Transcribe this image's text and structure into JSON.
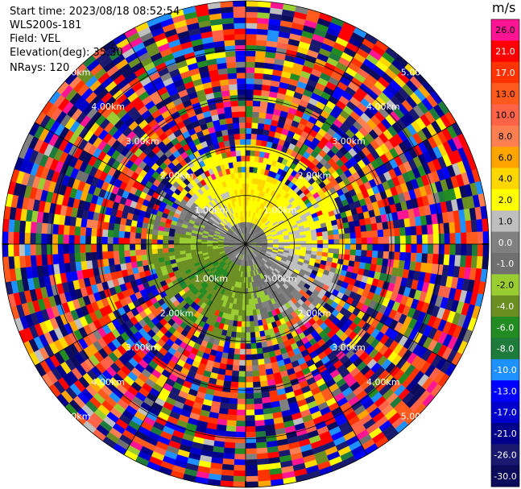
{
  "header": {
    "start_time": "Start time: 2023/08/18 08:52:54",
    "instrument": "WLS200s-181",
    "field": "Field: VEL",
    "elevation": "Elevation(deg): 35.30",
    "nrays": "NRays: 120"
  },
  "colorbar": {
    "unit": "m/s",
    "bins": [
      {
        "label": "26.0",
        "color": "#ff1493"
      },
      {
        "label": "21.0",
        "color": "#ff0000"
      },
      {
        "label": "17.0",
        "color": "#ff3300"
      },
      {
        "label": "13.0",
        "color": "#ff5a1e"
      },
      {
        "label": "10.0",
        "color": "#ff6347"
      },
      {
        "label": "8.0",
        "color": "#ff7f50"
      },
      {
        "label": "6.0",
        "color": "#ffa500"
      },
      {
        "label": "4.0",
        "color": "#ffd700"
      },
      {
        "label": "2.0",
        "color": "#ffff00"
      },
      {
        "label": "1.0",
        "color": "#bfbfbf"
      },
      {
        "label": "0.0",
        "color": "#808080"
      },
      {
        "label": "-1.0",
        "color": "#707070"
      },
      {
        "label": "-2.0",
        "color": "#9acd32"
      },
      {
        "label": "-4.0",
        "color": "#6b8e23"
      },
      {
        "label": "-6.0",
        "color": "#228b22"
      },
      {
        "label": "-8.0",
        "color": "#1e7b3c"
      },
      {
        "label": "-10.0",
        "color": "#1e90ff"
      },
      {
        "label": "-13.0",
        "color": "#0000ff"
      },
      {
        "label": "-17.0",
        "color": "#0000cd"
      },
      {
        "label": "-21.0",
        "color": "#00008b"
      },
      {
        "label": "-26.0",
        "color": "#191970"
      },
      {
        "label": "-30.0",
        "color": "#0b0b5c"
      }
    ]
  },
  "chart_data": {
    "type": "heatmap",
    "projection": "polar PPI",
    "field": "VEL",
    "units": "m/s",
    "range_rings_km": [
      1.0,
      2.0,
      3.0,
      4.0,
      5.0
    ],
    "range_ring_labels": [
      "1.00km",
      "2.00km",
      "3.00km",
      "4.00km",
      "5.00km"
    ],
    "azimuth_spokes_deg": [
      0,
      30,
      60,
      90,
      120,
      150,
      180,
      210,
      240,
      270,
      300,
      330
    ],
    "n_rays": 120,
    "max_range_km": 5.0,
    "clean_region_km": 1.55,
    "sector_means_ms": [
      {
        "azimuth_deg": 0,
        "velocity": 4.0
      },
      {
        "azimuth_deg": 45,
        "velocity": 3.0
      },
      {
        "azimuth_deg": 90,
        "velocity": 2.0
      },
      {
        "azimuth_deg": 135,
        "velocity": 0.5
      },
      {
        "azimuth_deg": 180,
        "velocity": -2.0
      },
      {
        "azimuth_deg": 225,
        "velocity": -4.0
      },
      {
        "azimuth_deg": 270,
        "velocity": -2.0
      },
      {
        "azimuth_deg": 315,
        "velocity": 2.0
      }
    ],
    "near_range_value_ms": 0.0,
    "grid": true
  }
}
